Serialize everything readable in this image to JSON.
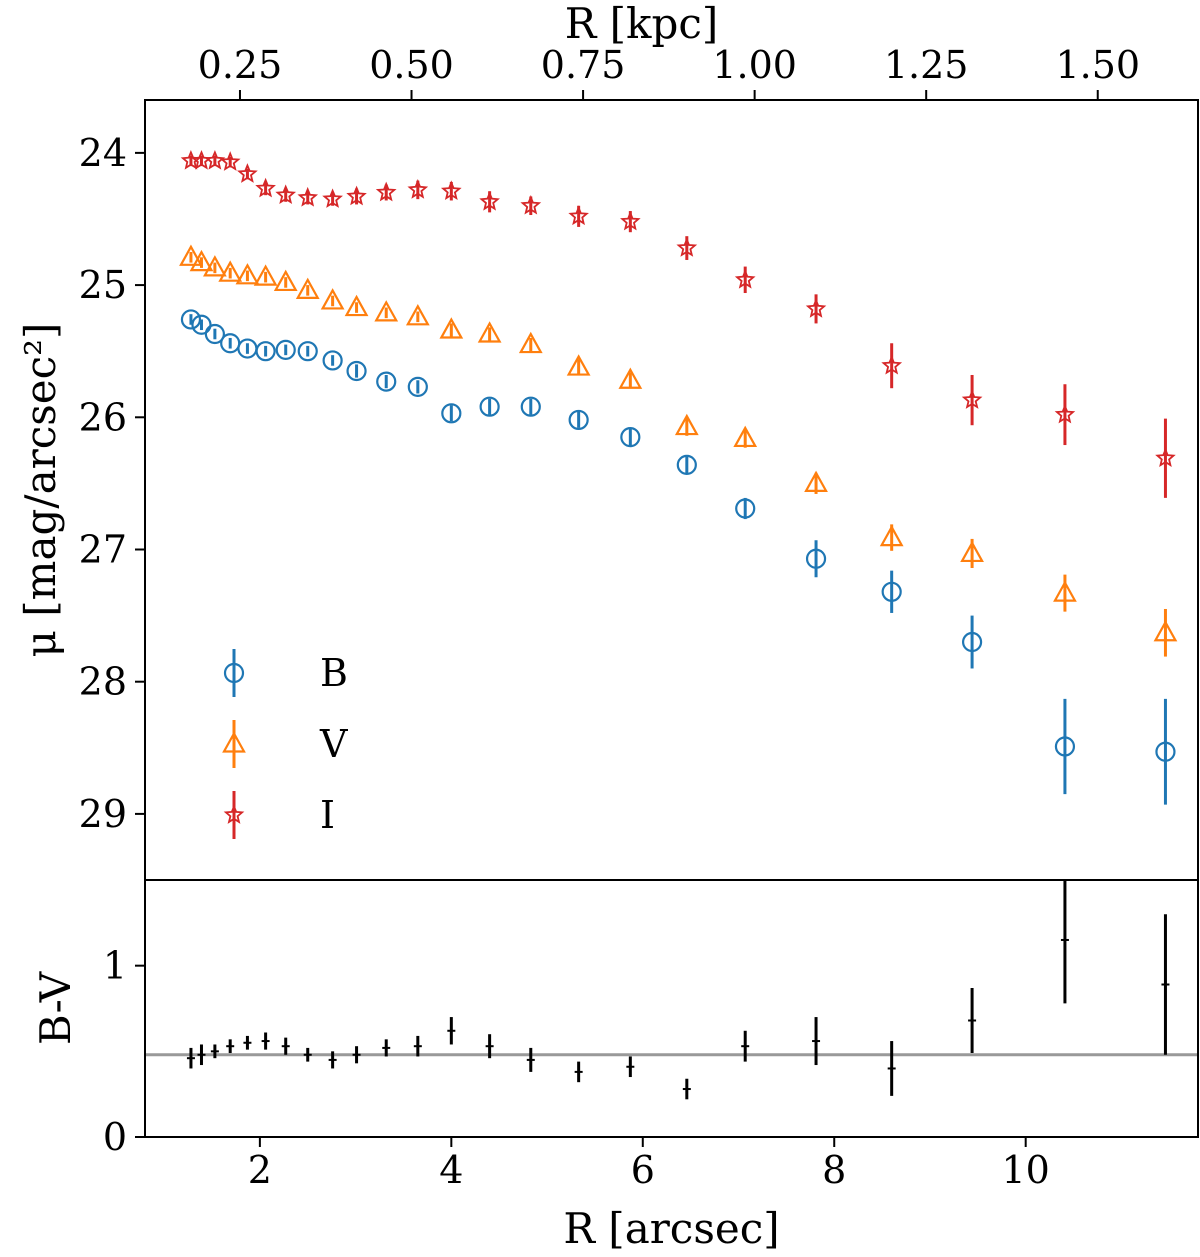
{
  "chart_data": [
    {
      "type": "scatter",
      "panel": "surface-brightness",
      "xlabel": "R [arcsec]",
      "secondary_xlabel": "R [kpc]",
      "ylabel": "μ [mag/arcsec²]",
      "ylim": [
        29.5,
        23.6
      ],
      "y_inverted": true,
      "xlim": [
        0.8,
        11.8
      ],
      "secondary_x_ticks": [
        "0.25",
        "0.50",
        "0.75",
        "1.00",
        "1.25",
        "1.50"
      ],
      "secondary_x_tick_values": [
        0.25,
        0.5,
        0.75,
        1.0,
        1.25,
        1.5
      ],
      "kpc_per_arcsec": 0.1395,
      "y_ticks": [
        "24",
        "25",
        "26",
        "27",
        "28",
        "29"
      ],
      "y_tick_values": [
        24,
        25,
        26,
        27,
        28,
        29
      ],
      "legend_position": "lower-left",
      "x": [
        1.28,
        1.39,
        1.53,
        1.69,
        1.87,
        2.06,
        2.27,
        2.5,
        2.76,
        3.01,
        3.32,
        3.65,
        4.0,
        4.4,
        4.83,
        5.33,
        5.87,
        6.46,
        7.07,
        7.81,
        8.6,
        9.44,
        10.41,
        11.46
      ],
      "series": [
        {
          "name": "B",
          "marker": "circle",
          "color": "#1f77b4",
          "y": [
            25.26,
            25.3,
            25.37,
            25.44,
            25.48,
            25.5,
            25.49,
            25.5,
            25.57,
            25.65,
            25.73,
            25.77,
            25.97,
            25.92,
            25.92,
            26.02,
            26.15,
            26.36,
            26.69,
            27.07,
            27.32,
            27.7,
            28.49,
            28.53
          ],
          "err": [
            0.04,
            0.04,
            0.04,
            0.04,
            0.04,
            0.04,
            0.04,
            0.04,
            0.04,
            0.05,
            0.05,
            0.05,
            0.06,
            0.06,
            0.06,
            0.06,
            0.07,
            0.07,
            0.08,
            0.14,
            0.16,
            0.2,
            0.36,
            0.4
          ]
        },
        {
          "name": "V",
          "marker": "triangle",
          "color": "#ff7f0e",
          "y": [
            24.79,
            24.83,
            24.87,
            24.91,
            24.93,
            24.94,
            24.98,
            25.04,
            25.12,
            25.17,
            25.21,
            25.24,
            25.34,
            25.37,
            25.45,
            25.62,
            25.72,
            26.07,
            26.16,
            26.5,
            26.91,
            27.03,
            27.33,
            27.63
          ],
          "err": [
            0.04,
            0.04,
            0.04,
            0.04,
            0.04,
            0.04,
            0.04,
            0.04,
            0.04,
            0.04,
            0.04,
            0.04,
            0.05,
            0.05,
            0.05,
            0.06,
            0.06,
            0.07,
            0.07,
            0.08,
            0.1,
            0.11,
            0.14,
            0.18
          ]
        },
        {
          "name": "I",
          "marker": "star",
          "color": "#d62728",
          "y": [
            24.06,
            24.06,
            24.06,
            24.07,
            24.16,
            24.27,
            24.32,
            24.34,
            24.35,
            24.33,
            24.3,
            24.28,
            24.29,
            24.37,
            24.4,
            24.48,
            24.52,
            24.72,
            24.96,
            25.18,
            25.61,
            25.87,
            25.98,
            26.31
          ],
          "err": [
            0.04,
            0.04,
            0.04,
            0.04,
            0.04,
            0.05,
            0.05,
            0.05,
            0.05,
            0.06,
            0.06,
            0.07,
            0.07,
            0.08,
            0.07,
            0.08,
            0.08,
            0.09,
            0.1,
            0.11,
            0.17,
            0.19,
            0.23,
            0.3
          ]
        }
      ]
    },
    {
      "type": "scatter",
      "panel": "color",
      "xlabel": "R [arcsec]",
      "ylabel": "B-V",
      "xlim": [
        0.8,
        11.8
      ],
      "ylim": [
        0,
        1.5
      ],
      "x_ticks": [
        "2",
        "4",
        "6",
        "8",
        "10"
      ],
      "x_tick_values": [
        2,
        4,
        6,
        8,
        10
      ],
      "y_ticks": [
        "0",
        "1"
      ],
      "y_tick_values": [
        0,
        1
      ],
      "reference_line": 0.48,
      "series": [
        {
          "name": "B-V",
          "color": "#000000",
          "x": [
            1.28,
            1.39,
            1.53,
            1.69,
            1.87,
            2.06,
            2.27,
            2.5,
            2.76,
            3.01,
            3.32,
            3.65,
            4.0,
            4.4,
            4.83,
            5.33,
            5.87,
            6.46,
            7.07,
            7.81,
            8.6,
            9.44,
            10.41,
            11.46
          ],
          "y": [
            0.46,
            0.48,
            0.5,
            0.53,
            0.55,
            0.56,
            0.53,
            0.48,
            0.45,
            0.48,
            0.52,
            0.53,
            0.62,
            0.53,
            0.45,
            0.38,
            0.41,
            0.28,
            0.53,
            0.56,
            0.4,
            0.68,
            1.15,
            0.89
          ],
          "err": [
            0.06,
            0.06,
            0.04,
            0.04,
            0.04,
            0.05,
            0.05,
            0.04,
            0.05,
            0.05,
            0.05,
            0.06,
            0.08,
            0.07,
            0.07,
            0.06,
            0.06,
            0.06,
            0.09,
            0.14,
            0.16,
            0.19,
            0.37,
            0.41
          ]
        }
      ]
    }
  ],
  "legend": {
    "items": [
      {
        "label": "B",
        "marker": "circle",
        "color": "#1f77b4"
      },
      {
        "label": "V",
        "marker": "triangle",
        "color": "#ff7f0e"
      },
      {
        "label": "I",
        "marker": "star",
        "color": "#d62728"
      }
    ]
  }
}
